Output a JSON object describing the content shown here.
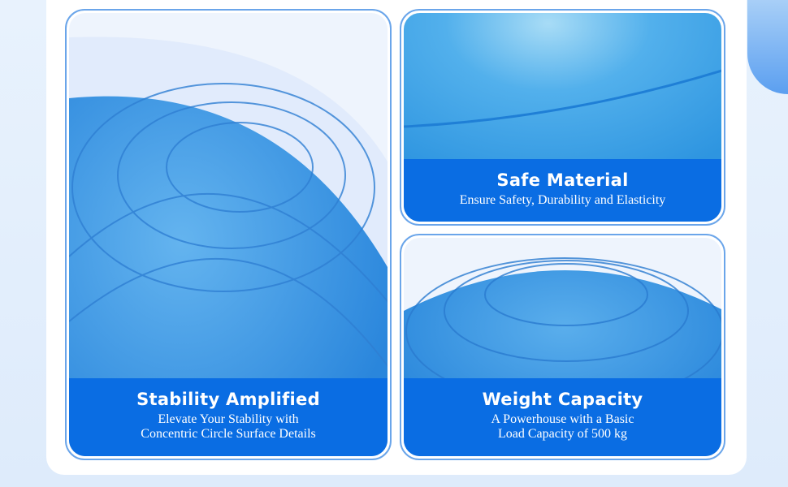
{
  "cards": [
    {
      "title": "Stability Amplified",
      "sub1": "Elevate Your Stability with",
      "sub2": "Concentric Circle Surface Details"
    },
    {
      "title": "Safe Material",
      "sub1": "Ensure Safety, Durability and Elasticity"
    },
    {
      "title": "Weight Capacity",
      "sub1": "A Powerhouse with a Basic",
      "sub2": "Load Capacity of 500 kg"
    }
  ],
  "colors": {
    "caption": "#0a6de3",
    "border": "#6aa5ea",
    "ball": "#3a9ae6"
  }
}
